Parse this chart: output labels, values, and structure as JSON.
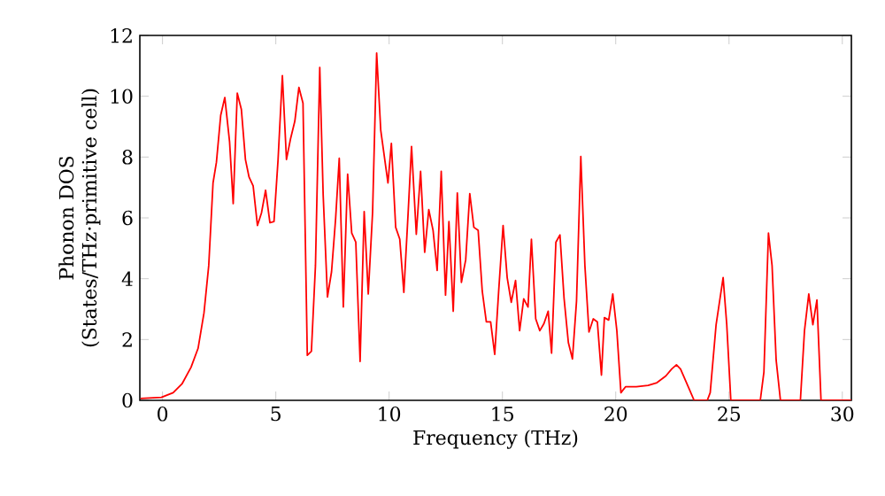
{
  "chart_data": {
    "type": "line",
    "xlabel": "Frequency (THz)",
    "ylabel": "Phonon DOS (States/THz·primitive cell)",
    "xlim": [
      -1,
      30.4
    ],
    "ylim": [
      0,
      12
    ],
    "xticks": [
      0,
      5,
      10,
      15,
      20,
      25,
      30
    ],
    "yticks": [
      0,
      2,
      4,
      6,
      8,
      10,
      12
    ],
    "grid": false,
    "legend": false,
    "marker": "none",
    "line_style": "solid",
    "series": [
      {
        "color": "#ff0000",
        "x": [
          -0.97,
          -0.05,
          0.47,
          0.86,
          1.26,
          1.57,
          1.83,
          2.04,
          2.23,
          2.38,
          2.57,
          2.75,
          2.96,
          3.12,
          3.3,
          3.48,
          3.66,
          3.82,
          4.0,
          4.19,
          4.37,
          4.55,
          4.74,
          4.92,
          5.1,
          5.29,
          5.47,
          5.65,
          5.84,
          6.02,
          6.2,
          6.39,
          6.57,
          6.75,
          6.94,
          7.09,
          7.28,
          7.46,
          7.64,
          7.8,
          7.98,
          8.17,
          8.35,
          8.53,
          8.72,
          8.9,
          9.08,
          9.27,
          9.45,
          9.63,
          9.95,
          10.1,
          10.29,
          10.47,
          10.65,
          10.84,
          10.99,
          11.2,
          11.39,
          11.57,
          11.75,
          11.94,
          12.12,
          12.3,
          12.49,
          12.64,
          12.83,
          13.01,
          13.19,
          13.38,
          13.56,
          13.74,
          13.93,
          14.11,
          14.29,
          14.48,
          14.66,
          14.84,
          15.03,
          15.21,
          15.39,
          15.58,
          15.76,
          15.94,
          16.13,
          16.28,
          16.47,
          16.65,
          16.83,
          17.02,
          17.17,
          17.36,
          17.54,
          17.72,
          17.91,
          18.09,
          18.27,
          18.46,
          18.64,
          18.82,
          19.01,
          19.19,
          19.37,
          19.5,
          19.69,
          19.87,
          20.05,
          20.23,
          20.44,
          20.91,
          21.43,
          21.82,
          22.21,
          22.47,
          22.68,
          22.86,
          23.2,
          23.46,
          24.04,
          24.17,
          24.43,
          24.74,
          24.9,
          25.08,
          26.38,
          26.54,
          26.74,
          26.9,
          27.08,
          27.27,
          28.15,
          28.33,
          28.52,
          28.7,
          28.88,
          29.06,
          30.4
        ],
        "values": [
          0.06,
          0.1,
          0.25,
          0.54,
          1.09,
          1.71,
          2.87,
          4.43,
          7.15,
          7.83,
          9.38,
          9.96,
          8.5,
          6.47,
          10.1,
          9.57,
          7.92,
          7.34,
          7.05,
          5.75,
          6.17,
          6.91,
          5.84,
          5.88,
          7.92,
          10.68,
          7.92,
          8.6,
          9.18,
          10.29,
          9.77,
          1.48,
          1.61,
          4.43,
          10.95,
          6.76,
          3.4,
          4.23,
          5.98,
          7.96,
          3.07,
          7.44,
          5.5,
          5.2,
          1.28,
          6.21,
          3.5,
          6.17,
          11.42,
          8.89,
          7.15,
          8.45,
          5.69,
          5.3,
          3.55,
          6.17,
          8.35,
          5.46,
          7.53,
          4.87,
          6.27,
          5.59,
          4.27,
          7.53,
          3.46,
          5.88,
          2.93,
          6.82,
          3.88,
          4.62,
          6.8,
          5.69,
          5.59,
          3.59,
          2.58,
          2.58,
          1.51,
          3.65,
          5.75,
          4.04,
          3.22,
          3.94,
          2.29,
          3.34,
          3.07,
          5.3,
          2.68,
          2.29,
          2.52,
          2.93,
          1.55,
          5.2,
          5.44,
          3.36,
          1.9,
          1.36,
          3.26,
          8.02,
          4.43,
          2.25,
          2.68,
          2.58,
          0.83,
          2.72,
          2.64,
          3.5,
          2.29,
          0.25,
          0.45,
          0.45,
          0.49,
          0.58,
          0.8,
          1.03,
          1.17,
          1.03,
          0.45,
          0,
          0,
          0.25,
          2.49,
          4.04,
          2.49,
          0,
          0,
          0.93,
          5.5,
          4.43,
          1.32,
          0,
          0,
          2.29,
          3.5,
          2.49,
          3.3,
          0,
          0
        ]
      }
    ]
  }
}
